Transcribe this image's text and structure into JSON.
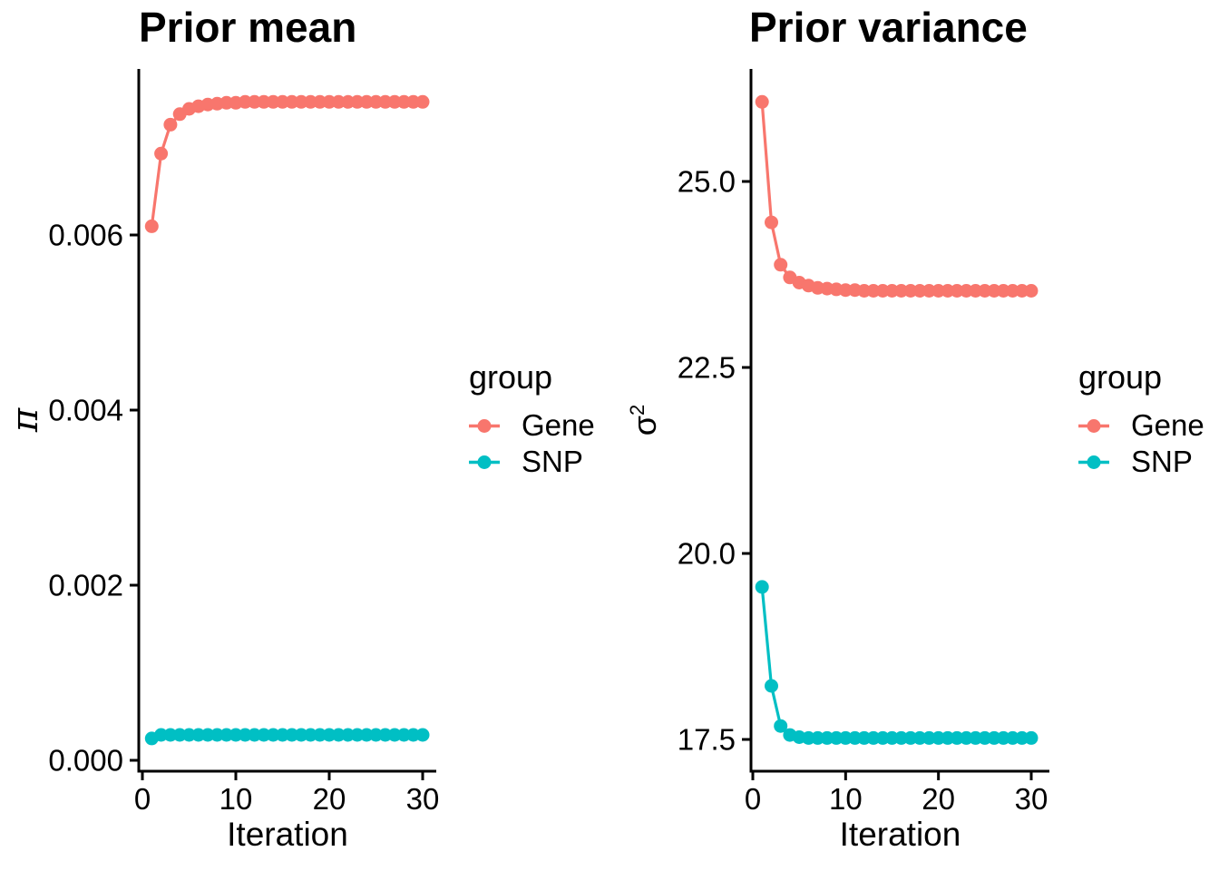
{
  "figure": {
    "background": "#ffffff",
    "text_color": "#000000",
    "axis_color": "#000000"
  },
  "legend": {
    "title": "group",
    "items": [
      {
        "label": "Gene",
        "color": "#F8766D"
      },
      {
        "label": "SNP",
        "color": "#00BFC4"
      }
    ]
  },
  "chart_data": [
    {
      "type": "line",
      "title": "Prior mean",
      "xlabel": "Iteration",
      "ylabel": "π",
      "ylabel_base": "π",
      "ylabel_sup": "",
      "x": [
        1,
        2,
        3,
        4,
        5,
        6,
        7,
        8,
        9,
        10,
        11,
        12,
        13,
        14,
        15,
        16,
        17,
        18,
        19,
        20,
        21,
        22,
        23,
        24,
        25,
        26,
        27,
        28,
        29,
        30
      ],
      "series": [
        {
          "name": "Gene",
          "color": "#F8766D",
          "values": [
            0.0061,
            0.00693,
            0.00726,
            0.00738,
            0.00744,
            0.00747,
            0.00749,
            0.0075,
            0.00751,
            0.00751,
            0.00752,
            0.00752,
            0.00752,
            0.00752,
            0.00752,
            0.00752,
            0.00752,
            0.00752,
            0.00752,
            0.00752,
            0.00752,
            0.00752,
            0.00752,
            0.00752,
            0.00752,
            0.00752,
            0.00752,
            0.00752,
            0.00752,
            0.00752
          ]
        },
        {
          "name": "SNP",
          "color": "#00BFC4",
          "values": [
            0.00025,
            0.00029,
            0.00029,
            0.00029,
            0.00029,
            0.00029,
            0.00029,
            0.00029,
            0.00029,
            0.00029,
            0.00029,
            0.00029,
            0.00029,
            0.00029,
            0.00029,
            0.00029,
            0.00029,
            0.00029,
            0.00029,
            0.00029,
            0.00029,
            0.00029,
            0.00029,
            0.00029,
            0.00029,
            0.00029,
            0.00029,
            0.00029,
            0.00029,
            0.00029
          ]
        }
      ],
      "x_ticks": [
        0,
        10,
        20,
        30
      ],
      "y_ticks": [
        0.0,
        0.002,
        0.004,
        0.006
      ],
      "y_tick_labels": [
        "0.000",
        "0.002",
        "0.004",
        "0.006"
      ],
      "xlim": [
        -0.4,
        31.5
      ],
      "ylim": [
        -0.00012,
        0.00788
      ],
      "grid": false,
      "legend_position": "right"
    },
    {
      "type": "line",
      "title": "Prior variance",
      "xlabel": "Iteration",
      "ylabel": "σ^2",
      "ylabel_base": "σ",
      "ylabel_sup": "2",
      "x": [
        1,
        2,
        3,
        4,
        5,
        6,
        7,
        8,
        9,
        10,
        11,
        12,
        13,
        14,
        15,
        16,
        17,
        18,
        19,
        20,
        21,
        22,
        23,
        24,
        25,
        26,
        27,
        28,
        29,
        30
      ],
      "series": [
        {
          "name": "Gene",
          "color": "#F8766D",
          "values": [
            26.07,
            24.45,
            23.88,
            23.71,
            23.64,
            23.6,
            23.57,
            23.56,
            23.55,
            23.54,
            23.54,
            23.53,
            23.53,
            23.53,
            23.53,
            23.53,
            23.53,
            23.53,
            23.53,
            23.53,
            23.53,
            23.53,
            23.53,
            23.53,
            23.53,
            23.53,
            23.53,
            23.53,
            23.53,
            23.53
          ]
        },
        {
          "name": "SNP",
          "color": "#00BFC4",
          "values": [
            19.55,
            18.22,
            17.68,
            17.56,
            17.53,
            17.52,
            17.52,
            17.52,
            17.52,
            17.52,
            17.52,
            17.52,
            17.52,
            17.52,
            17.52,
            17.52,
            17.52,
            17.52,
            17.52,
            17.52,
            17.52,
            17.52,
            17.52,
            17.52,
            17.52,
            17.52,
            17.52,
            17.52,
            17.52,
            17.52
          ]
        }
      ],
      "x_ticks": [
        0,
        10,
        20,
        30
      ],
      "y_ticks": [
        17.5,
        20.0,
        22.5,
        25.0
      ],
      "y_tick_labels": [
        "17.5",
        "20.0",
        "22.5",
        "25.0"
      ],
      "xlim": [
        -0.2,
        31.9
      ],
      "ylim": [
        17.07,
        26.52
      ],
      "grid": false,
      "legend_position": "right"
    }
  ]
}
